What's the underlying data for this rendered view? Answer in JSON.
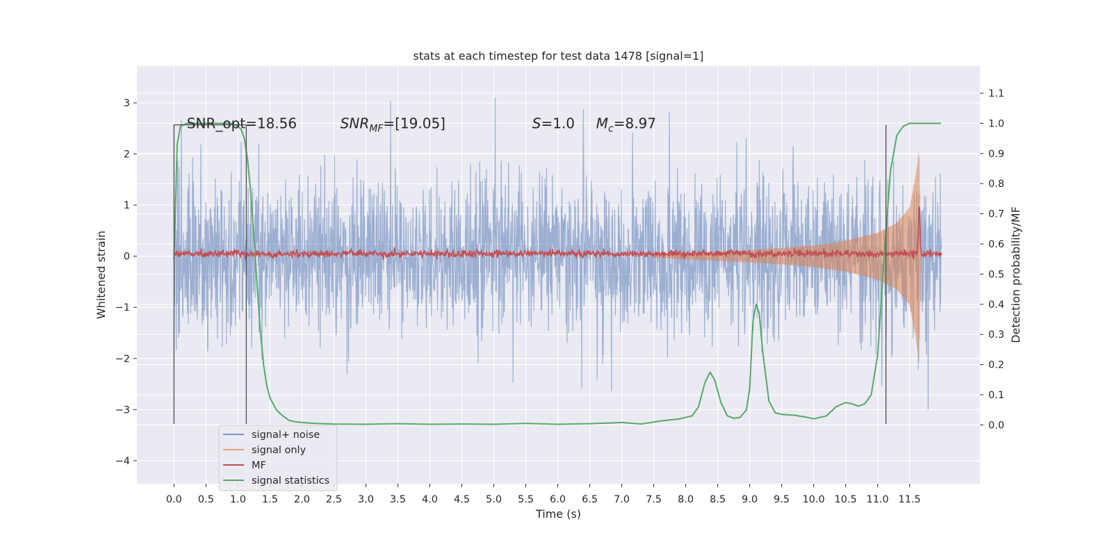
{
  "chart_data": {
    "type": "line",
    "title": "stats at each timestep for test data 1478 [signal=1]",
    "xlabel": "Time (s)",
    "ylabel": "Whitened strain",
    "ylabel_right": "Detection probability/MF",
    "xlim": [
      -0.58,
      12.6
    ],
    "ylim": [
      -4.45,
      3.72
    ],
    "ylim_right": [
      -0.195,
      1.19
    ],
    "x_ticks": [
      0.0,
      0.5,
      1.0,
      1.5,
      2.0,
      2.5,
      3.0,
      3.5,
      4.0,
      4.5,
      5.0,
      5.5,
      6.0,
      6.5,
      7.0,
      7.5,
      8.0,
      8.5,
      9.0,
      9.5,
      10.0,
      10.5,
      11.0,
      11.5
    ],
    "x_tick_labels": [
      "0.0",
      "0.5",
      "1.0",
      "1.5",
      "2.0",
      "2.5",
      "3.0",
      "3.5",
      "4.0",
      "4.5",
      "5.0",
      "5.5",
      "6.0",
      "6.5",
      "7.0",
      "7.5",
      "8.0",
      "8.5",
      "9.0",
      "9.5",
      "10.0",
      "10.5",
      "11.0",
      "11.5"
    ],
    "y_ticks": [
      -4,
      -3,
      -2,
      -1,
      0,
      1,
      2,
      3
    ],
    "y_tick_labels": [
      "−4",
      "−3",
      "−2",
      "−1",
      "0",
      "1",
      "2",
      "3"
    ],
    "y_ticks_right": [
      0.0,
      0.1,
      0.2,
      0.3,
      0.4,
      0.5,
      0.6,
      0.7,
      0.8,
      0.9,
      1.0,
      1.1
    ],
    "y_tick_labels_right": [
      "0.0",
      "0.1",
      "0.2",
      "0.3",
      "0.4",
      "0.5",
      "0.6",
      "0.7",
      "0.8",
      "0.9",
      "1.0",
      "1.1"
    ],
    "grid": true,
    "legend_position": "lower-left",
    "annotations": {
      "snr_opt": {
        "label": "SNR_opt=18.56",
        "x": 0.2,
        "y": 2.6
      },
      "snr_mf": {
        "label_main": "SNR",
        "label_sub": "MF",
        "label_rest": "=[19.05]",
        "x": 2.6,
        "y": 2.6
      },
      "s_value": {
        "label_main": "S",
        "label_rest": "=1.0",
        "x": 5.6,
        "y": 2.6
      },
      "m_chirp": {
        "label_main": "M",
        "label_sub": "c",
        "label_rest": "=8.97",
        "x": 6.6,
        "y": 2.6
      }
    },
    "vertical_markers": [
      {
        "x": 0.0,
        "y_top": 2.57,
        "y_bottom": -3.28
      },
      {
        "x": 1.13,
        "y_top": 2.57,
        "y_bottom": -3.28
      },
      {
        "x": 11.13,
        "y_top": 2.57,
        "y_bottom": -3.28
      }
    ],
    "series": [
      {
        "name": "signal+ noise",
        "color": "#4c72b0",
        "alpha": 0.5,
        "noise_sigma": 0.75,
        "x_range": [
          0.0,
          12.0
        ],
        "num_points": 2400
      },
      {
        "name": "signal only",
        "color": "#dd8452",
        "alpha": 0.55,
        "envelope_x": [
          0.0,
          7.5,
          8.0,
          8.5,
          9.0,
          9.5,
          10.0,
          10.5,
          11.0,
          11.3,
          11.5,
          11.6,
          11.65,
          11.68
        ],
        "envelope_amp": [
          0.0,
          0.03,
          0.06,
          0.09,
          0.12,
          0.16,
          0.21,
          0.3,
          0.46,
          0.65,
          0.95,
          1.6,
          2.1,
          0.0
        ],
        "x_range": [
          7.5,
          11.68
        ]
      },
      {
        "name": "MF",
        "color": "#c44e52",
        "baseline": 0.05,
        "x_range": [
          0.0,
          12.0
        ],
        "num_points": 1500,
        "peak_x": 11.65,
        "peak_y": 1.0
      },
      {
        "name": "signal statistics",
        "color": "#55a868",
        "axis": "right",
        "x": [
          0.0,
          0.05,
          0.1,
          0.2,
          0.3,
          0.5,
          0.7,
          0.9,
          1.0,
          1.05,
          1.1,
          1.15,
          1.2,
          1.25,
          1.3,
          1.35,
          1.4,
          1.45,
          1.5,
          1.6,
          1.7,
          1.8,
          1.9,
          2.0,
          2.2,
          2.5,
          3.0,
          3.5,
          4.0,
          4.5,
          5.0,
          5.5,
          6.0,
          6.5,
          7.0,
          7.3,
          7.6,
          7.9,
          8.1,
          8.2,
          8.3,
          8.38,
          8.45,
          8.55,
          8.65,
          8.75,
          8.85,
          8.95,
          9.0,
          9.05,
          9.1,
          9.15,
          9.2,
          9.3,
          9.4,
          9.5,
          9.7,
          9.9,
          10.0,
          10.2,
          10.35,
          10.5,
          10.6,
          10.7,
          10.8,
          10.9,
          11.0,
          11.1,
          11.2,
          11.3,
          11.4,
          11.5,
          11.6,
          11.7,
          11.8,
          11.9,
          11.99
        ],
        "y": [
          0.55,
          0.93,
          0.99,
          1.0,
          1.0,
          1.0,
          1.0,
          1.0,
          0.99,
          0.98,
          0.95,
          0.88,
          0.77,
          0.62,
          0.46,
          0.31,
          0.2,
          0.13,
          0.09,
          0.05,
          0.03,
          0.015,
          0.01,
          0.008,
          0.005,
          0.003,
          0.002,
          0.004,
          0.002,
          0.003,
          0.002,
          0.005,
          0.002,
          0.004,
          0.008,
          0.003,
          0.013,
          0.02,
          0.03,
          0.06,
          0.14,
          0.175,
          0.15,
          0.075,
          0.03,
          0.022,
          0.025,
          0.05,
          0.12,
          0.34,
          0.4,
          0.37,
          0.25,
          0.08,
          0.04,
          0.035,
          0.032,
          0.025,
          0.02,
          0.03,
          0.06,
          0.074,
          0.07,
          0.062,
          0.07,
          0.1,
          0.23,
          0.55,
          0.84,
          0.96,
          0.99,
          1.0,
          1.0,
          1.0,
          1.0,
          1.0,
          1.0
        ]
      }
    ]
  }
}
